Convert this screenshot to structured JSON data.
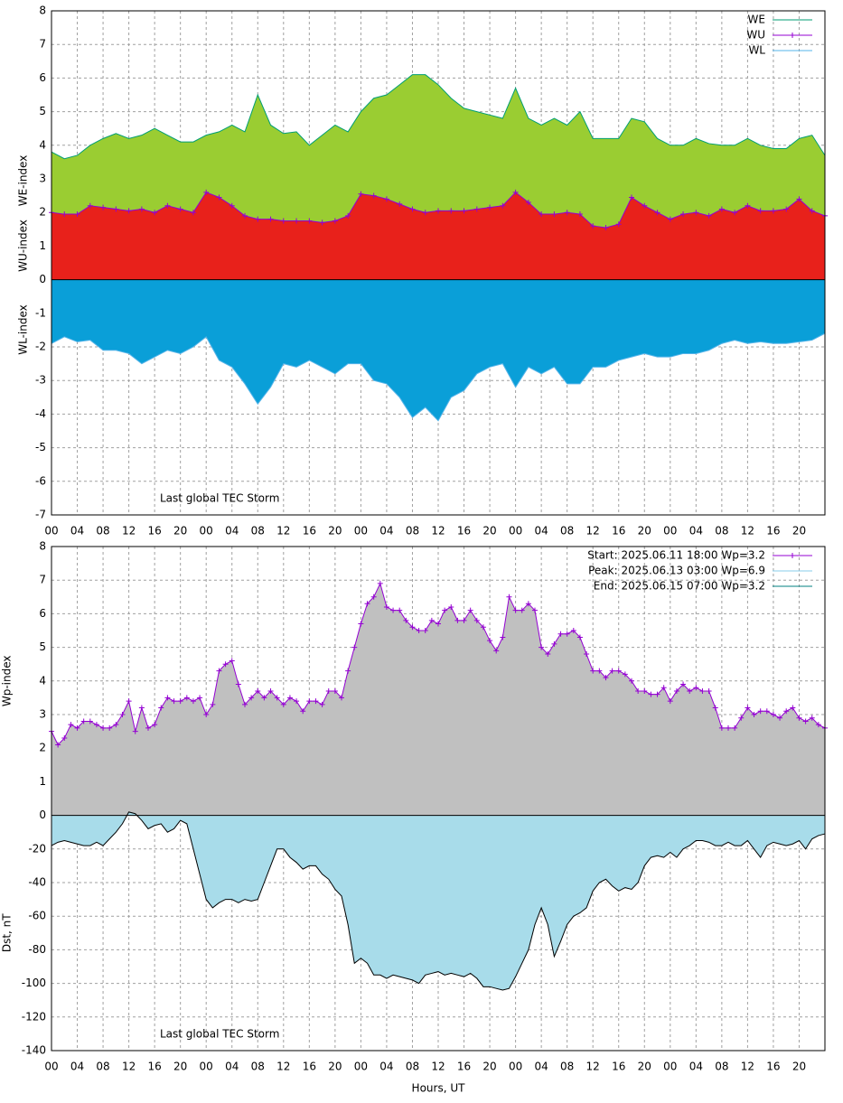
{
  "chart_data": [
    {
      "type": "area",
      "xlim": [
        0,
        120
      ],
      "ylim": [
        -7,
        8
      ],
      "grid": true,
      "legend": "top right",
      "yticks": [
        -7,
        -6,
        -5,
        -4,
        -3,
        -2,
        -1,
        0,
        1,
        2,
        3,
        4,
        5,
        6,
        7,
        8
      ],
      "xticks": [
        {
          "value": 0,
          "label": "00"
        },
        {
          "value": 4,
          "label": "04"
        },
        {
          "value": 8,
          "label": "08"
        },
        {
          "value": 12,
          "label": "12"
        },
        {
          "value": 16,
          "label": "16"
        },
        {
          "value": 20,
          "label": "20"
        },
        {
          "value": 24,
          "label": "00"
        },
        {
          "value": 28,
          "label": "04"
        },
        {
          "value": 32,
          "label": "08"
        },
        {
          "value": 36,
          "label": "12"
        },
        {
          "value": 40,
          "label": "16"
        },
        {
          "value": 44,
          "label": "20"
        },
        {
          "value": 48,
          "label": "00"
        },
        {
          "value": 52,
          "label": "04"
        },
        {
          "value": 56,
          "label": "08"
        },
        {
          "value": 60,
          "label": "12"
        },
        {
          "value": 64,
          "label": "16"
        },
        {
          "value": 68,
          "label": "20"
        },
        {
          "value": 72,
          "label": "00"
        },
        {
          "value": 76,
          "label": "04"
        },
        {
          "value": 80,
          "label": "08"
        },
        {
          "value": 84,
          "label": "12"
        },
        {
          "value": 88,
          "label": "16"
        },
        {
          "value": 92,
          "label": "20"
        },
        {
          "value": 96,
          "label": "00"
        },
        {
          "value": 100,
          "label": "04"
        },
        {
          "value": 104,
          "label": "08"
        },
        {
          "value": 108,
          "label": "12"
        },
        {
          "value": 112,
          "label": "16"
        },
        {
          "value": 116,
          "label": "20"
        }
      ],
      "ylabels": [
        "WE-index",
        "WU-index",
        "WL-index"
      ],
      "annotation": "Last global TEC Storm",
      "x": [
        0,
        2,
        4,
        6,
        8,
        10,
        12,
        14,
        16,
        18,
        20,
        22,
        24,
        26,
        28,
        30,
        32,
        34,
        36,
        38,
        40,
        42,
        44,
        46,
        48,
        50,
        52,
        54,
        56,
        58,
        60,
        62,
        64,
        66,
        68,
        70,
        72,
        74,
        76,
        78,
        80,
        82,
        84,
        86,
        88,
        90,
        92,
        94,
        96,
        98,
        100,
        102,
        104,
        106,
        108,
        110,
        112,
        114,
        116,
        118,
        120
      ],
      "series": [
        {
          "name": "WE",
          "color": "#009e73",
          "fill": "#9acd32",
          "values": [
            3.8,
            3.6,
            3.7,
            4.0,
            4.2,
            4.35,
            4.2,
            4.3,
            4.5,
            4.3,
            4.1,
            4.1,
            4.3,
            4.4,
            4.6,
            4.4,
            5.5,
            4.6,
            4.35,
            4.4,
            4.0,
            4.3,
            4.6,
            4.4,
            5.0,
            5.4,
            5.5,
            5.8,
            6.1,
            6.1,
            5.8,
            5.4,
            5.1,
            5.0,
            4.9,
            4.8,
            5.7,
            4.8,
            4.6,
            4.8,
            4.6,
            5.0,
            4.2,
            4.2,
            4.2,
            4.8,
            4.7,
            4.2,
            4.0,
            4.0,
            4.2,
            4.05,
            4.0,
            4.0,
            4.2,
            4.0,
            3.9,
            3.9,
            4.2,
            4.3,
            3.7
          ]
        },
        {
          "name": "WU",
          "color": "#9400d3",
          "fill": "#e8211b",
          "marker": "+",
          "values": [
            2.0,
            1.95,
            1.95,
            2.2,
            2.15,
            2.1,
            2.05,
            2.1,
            2.0,
            2.2,
            2.1,
            2.0,
            2.6,
            2.45,
            2.2,
            1.9,
            1.8,
            1.8,
            1.75,
            1.75,
            1.75,
            1.7,
            1.75,
            1.9,
            2.55,
            2.5,
            2.4,
            2.25,
            2.1,
            2.0,
            2.05,
            2.05,
            2.05,
            2.1,
            2.15,
            2.2,
            2.6,
            2.3,
            1.95,
            1.95,
            2.0,
            1.95,
            1.6,
            1.55,
            1.65,
            2.45,
            2.2,
            2.0,
            1.8,
            1.95,
            2.0,
            1.9,
            2.1,
            2.0,
            2.2,
            2.05,
            2.05,
            2.1,
            2.4,
            2.05,
            1.9
          ]
        },
        {
          "name": "WL",
          "color": "#56b4e9",
          "fill": "#0a9fd8",
          "values": [
            -1.9,
            -1.7,
            -1.85,
            -1.8,
            -2.1,
            -2.1,
            -2.2,
            -2.5,
            -2.3,
            -2.1,
            -2.2,
            -2.0,
            -1.7,
            -2.4,
            -2.6,
            -3.1,
            -3.7,
            -3.2,
            -2.5,
            -2.6,
            -2.4,
            -2.6,
            -2.8,
            -2.5,
            -2.5,
            -3.0,
            -3.1,
            -3.5,
            -4.1,
            -3.8,
            -4.2,
            -3.5,
            -3.3,
            -2.8,
            -2.6,
            -2.5,
            -3.2,
            -2.6,
            -2.8,
            -2.6,
            -3.1,
            -3.1,
            -2.6,
            -2.6,
            -2.4,
            -2.3,
            -2.2,
            -2.3,
            -2.3,
            -2.2,
            -2.2,
            -2.1,
            -1.9,
            -1.8,
            -1.9,
            -1.85,
            -1.9,
            -1.9,
            -1.85,
            -1.8,
            -1.6
          ]
        }
      ]
    },
    {
      "type": "area",
      "xlim": [
        0,
        120
      ],
      "ylim": [
        0,
        8
      ],
      "y2lim": [
        -140,
        0
      ],
      "grid": true,
      "legend": "top right",
      "yticks": [
        0,
        1,
        2,
        3,
        4,
        5,
        6,
        7,
        8
      ],
      "y2ticks": [
        -140,
        -120,
        -100,
        -80,
        -60,
        -40,
        -20
      ],
      "xticks": [
        {
          "value": 0,
          "label": "00"
        },
        {
          "value": 4,
          "label": "04"
        },
        {
          "value": 8,
          "label": "08"
        },
        {
          "value": 12,
          "label": "12"
        },
        {
          "value": 16,
          "label": "16"
        },
        {
          "value": 20,
          "label": "20"
        },
        {
          "value": 24,
          "label": "00"
        },
        {
          "value": 28,
          "label": "04"
        },
        {
          "value": 32,
          "label": "08"
        },
        {
          "value": 36,
          "label": "12"
        },
        {
          "value": 40,
          "label": "16"
        },
        {
          "value": 44,
          "label": "20"
        },
        {
          "value": 48,
          "label": "00"
        },
        {
          "value": 52,
          "label": "04"
        },
        {
          "value": 56,
          "label": "08"
        },
        {
          "value": 60,
          "label": "12"
        },
        {
          "value": 64,
          "label": "16"
        },
        {
          "value": 68,
          "label": "20"
        },
        {
          "value": 72,
          "label": "00"
        },
        {
          "value": 76,
          "label": "04"
        },
        {
          "value": 80,
          "label": "08"
        },
        {
          "value": 84,
          "label": "12"
        },
        {
          "value": 88,
          "label": "16"
        },
        {
          "value": 92,
          "label": "20"
        },
        {
          "value": 96,
          "label": "00"
        },
        {
          "value": 100,
          "label": "04"
        },
        {
          "value": 104,
          "label": "08"
        },
        {
          "value": 108,
          "label": "12"
        },
        {
          "value": 112,
          "label": "16"
        },
        {
          "value": 116,
          "label": "20"
        }
      ],
      "ylabel": "Wp-index",
      "y2label": "Dst, nT",
      "xlabel": "Hours, UT",
      "annotation": "Last global TEC Storm",
      "legend_entries": [
        {
          "label": "Start: 2025.06.11 18:00 Wp=3.2",
          "color": "#9400d3",
          "marker": "+"
        },
        {
          "label": "Peak: 2025.06.13 03:00 Wp=6.9",
          "color": "#87ceeb"
        },
        {
          "label": "End:  2025.06.15 07:00 Wp=3.2",
          "color": "#008080"
        }
      ],
      "x": [
        0,
        1,
        2,
        3,
        4,
        5,
        6,
        7,
        8,
        9,
        10,
        11,
        12,
        13,
        14,
        15,
        16,
        17,
        18,
        19,
        20,
        21,
        22,
        23,
        24,
        25,
        26,
        27,
        28,
        29,
        30,
        31,
        32,
        33,
        34,
        35,
        36,
        37,
        38,
        39,
        40,
        41,
        42,
        43,
        44,
        45,
        46,
        47,
        48,
        49,
        50,
        51,
        52,
        53,
        54,
        55,
        56,
        57,
        58,
        59,
        60,
        61,
        62,
        63,
        64,
        65,
        66,
        67,
        68,
        69,
        70,
        71,
        72,
        73,
        74,
        75,
        76,
        77,
        78,
        79,
        80,
        81,
        82,
        83,
        84,
        85,
        86,
        87,
        88,
        89,
        90,
        91,
        92,
        93,
        94,
        95,
        96,
        97,
        98,
        99,
        100,
        101,
        102,
        103,
        104,
        105,
        106,
        107,
        108,
        109,
        110,
        111,
        112,
        113,
        114,
        115,
        116,
        117,
        118,
        119,
        120
      ],
      "series": [
        {
          "color": "#9400d3",
          "fill": "#c0c0c0",
          "marker": "+",
          "values": [
            2.5,
            2.1,
            2.3,
            2.7,
            2.6,
            2.8,
            2.8,
            2.7,
            2.6,
            2.6,
            2.7,
            3.0,
            3.4,
            2.5,
            3.2,
            2.6,
            2.7,
            3.2,
            3.5,
            3.4,
            3.4,
            3.5,
            3.4,
            3.5,
            3.0,
            3.3,
            4.3,
            4.5,
            4.6,
            3.9,
            3.3,
            3.5,
            3.7,
            3.5,
            3.7,
            3.5,
            3.3,
            3.5,
            3.4,
            3.1,
            3.4,
            3.4,
            3.3,
            3.7,
            3.7,
            3.5,
            4.3,
            5.0,
            5.7,
            6.3,
            6.5,
            6.9,
            6.2,
            6.1,
            6.1,
            5.8,
            5.6,
            5.5,
            5.5,
            5.8,
            5.7,
            6.1,
            6.2,
            5.8,
            5.8,
            6.1,
            5.8,
            5.6,
            5.2,
            4.9,
            5.3,
            6.5,
            6.1,
            6.1,
            6.3,
            6.1,
            5.0,
            4.8,
            5.1,
            5.4,
            5.4,
            5.5,
            5.3,
            4.8,
            4.3,
            4.3,
            4.1,
            4.3,
            4.3,
            4.2,
            4.0,
            3.7,
            3.7,
            3.6,
            3.6,
            3.8,
            3.4,
            3.7,
            3.9,
            3.7,
            3.8,
            3.7,
            3.7,
            3.2,
            2.6,
            2.6,
            2.6,
            2.9,
            3.2,
            3.0,
            3.1,
            3.1,
            3.0,
            2.9,
            3.1,
            3.2,
            2.9,
            2.8,
            2.9,
            2.7,
            2.6
          ]
        },
        {
          "axis": "y2",
          "color": "#000000",
          "fill": "#a8dcea",
          "values": [
            -18,
            -16,
            -15,
            -16,
            -17,
            -18,
            -18,
            -16,
            -18,
            -14,
            -10,
            -5,
            2,
            1,
            -3,
            -8,
            -6,
            -5,
            -10,
            -8,
            -3,
            -5,
            -20,
            -35,
            -50,
            -55,
            -52,
            -50,
            -50,
            -52,
            -50,
            -51,
            -50,
            -40,
            -30,
            -20,
            -20,
            -25,
            -28,
            -32,
            -30,
            -30,
            -35,
            -38,
            -44,
            -48,
            -65,
            -88,
            -85,
            -88,
            -95,
            -95,
            -97,
            -95,
            -96,
            -97,
            -98,
            -100,
            -95,
            -94,
            -93,
            -95,
            -94,
            -95,
            -96,
            -94,
            -97,
            -102,
            -102,
            -103,
            -104,
            -103,
            -96,
            -88,
            -80,
            -65,
            -55,
            -65,
            -84,
            -75,
            -65,
            -60,
            -58,
            -55,
            -45,
            -40,
            -38,
            -42,
            -45,
            -43,
            -44,
            -40,
            -30,
            -25,
            -24,
            -25,
            -22,
            -25,
            -20,
            -18,
            -15,
            -15,
            -16,
            -18,
            -18,
            -16,
            -18,
            -18,
            -15,
            -20,
            -25,
            -18,
            -16,
            -17,
            -18,
            -17,
            -15,
            -20,
            -14,
            -12,
            -11
          ]
        }
      ]
    }
  ]
}
